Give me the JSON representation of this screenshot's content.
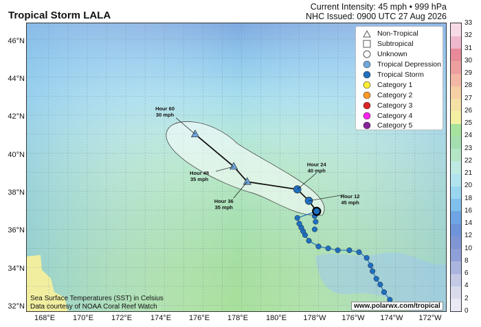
{
  "header": {
    "title": "Tropical Storm LALA",
    "intensity": "Current Intensity: 45 mph • 999 hPa",
    "issued": "NHC Issued: 0900 UTC 27 Aug 2026"
  },
  "legend": {
    "items": [
      {
        "label": "Non-Tropical",
        "symbol": "triangle",
        "color": "#ffffff"
      },
      {
        "label": "Subtropical",
        "symbol": "square",
        "color": "#ffffff"
      },
      {
        "label": "Unknown",
        "symbol": "circle",
        "color": "#ffffff"
      },
      {
        "label": "Tropical Depression",
        "symbol": "circle",
        "color": "#6fa8dc"
      },
      {
        "label": "Tropical Storm",
        "symbol": "circle",
        "color": "#1f6fbf"
      },
      {
        "label": "Category 1",
        "symbol": "circle",
        "color": "#ffee33"
      },
      {
        "label": "Category 2",
        "symbol": "circle",
        "color": "#ff9922"
      },
      {
        "label": "Category 3",
        "symbol": "circle",
        "color": "#dd2222"
      },
      {
        "label": "Category 4",
        "symbol": "circle",
        "color": "#ff22ee"
      },
      {
        "label": "Category 5",
        "symbol": "circle",
        "color": "#882299"
      }
    ]
  },
  "axes": {
    "lat_labels": [
      "46°N",
      "44°N",
      "42°N",
      "40°N",
      "38°N",
      "36°N",
      "34°N",
      "32°N"
    ],
    "lon_labels": [
      "168°E",
      "170°E",
      "172°E",
      "174°E",
      "176°E",
      "178°E",
      "180°E",
      "178°W",
      "176°W",
      "174°W",
      "172°W"
    ]
  },
  "colorbar": {
    "ticks": [
      0,
      2,
      4,
      6,
      8,
      10,
      12,
      14,
      16,
      18,
      20,
      21,
      22,
      23,
      24,
      25,
      26,
      27,
      28,
      29,
      30,
      31,
      32,
      33
    ],
    "colors": [
      "#e9eaf3",
      "#d9dbed",
      "#c4c9e6",
      "#aab4de",
      "#8f9fd7",
      "#7f95d4",
      "#6f93d8",
      "#6fa5e4",
      "#80c0ec",
      "#9ad6f0",
      "#b1e4ee",
      "#bdeae2",
      "#b4e6c6",
      "#a4deb0",
      "#a5e39e",
      "#f4f0a3",
      "#f5e0a6",
      "#f6cfa4",
      "#f2b8a5",
      "#eea0a0",
      "#e88a9a",
      "#f0b8cc",
      "#f8dae6"
    ]
  },
  "credits": {
    "sst": "Sea Surface Temperatures (SST) in Celsius",
    "source": "Data courtesy of NOAA Coral Reef Watch",
    "url": "www.polarwx.com/tropical"
  },
  "forecast_labels": [
    {
      "hour": "Hour 12",
      "wind": "45 mph"
    },
    {
      "hour": "Hour 24",
      "wind": "40 mph"
    },
    {
      "hour": "Hour 36",
      "wind": "35 mph"
    },
    {
      "hour": "Hour 48",
      "wind": "35 mph"
    },
    {
      "hour": "Hour 60",
      "wind": "30 mph"
    }
  ],
  "track": {
    "past": [
      {
        "lon": 186.4,
        "lat": 31.9,
        "type": "Tropical Storm"
      },
      {
        "lon": 186.1,
        "lat": 31.9,
        "type": "Tropical Storm"
      },
      {
        "lon": 185.7,
        "lat": 32.3,
        "type": "Tropical Storm"
      },
      {
        "lon": 185.4,
        "lat": 32.7,
        "type": "Tropical Storm"
      },
      {
        "lon": 185.2,
        "lat": 33.1,
        "type": "Tropical Storm"
      },
      {
        "lon": 185.0,
        "lat": 33.4,
        "type": "Tropical Storm"
      },
      {
        "lon": 184.8,
        "lat": 33.8,
        "type": "Tropical Storm"
      },
      {
        "lon": 184.7,
        "lat": 34.1,
        "type": "Tropical Storm"
      },
      {
        "lon": 184.5,
        "lat": 34.5,
        "type": "Tropical Storm"
      },
      {
        "lon": 184.1,
        "lat": 34.8,
        "type": "Tropical Storm"
      },
      {
        "lon": 183.6,
        "lat": 34.9,
        "type": "Tropical Storm"
      },
      {
        "lon": 183.0,
        "lat": 34.9,
        "type": "Tropical Storm"
      },
      {
        "lon": 182.5,
        "lat": 35.0,
        "type": "Tropical Storm"
      },
      {
        "lon": 182.0,
        "lat": 35.1,
        "type": "Tropical Storm"
      },
      {
        "lon": 181.5,
        "lat": 35.4,
        "type": "Tropical Storm"
      },
      {
        "lon": 181.3,
        "lat": 35.7,
        "type": "Tropical Storm"
      },
      {
        "lon": 181.2,
        "lat": 35.9,
        "type": "Tropical Storm"
      },
      {
        "lon": 181.1,
        "lat": 36.1,
        "type": "Tropical Storm"
      },
      {
        "lon": 181.0,
        "lat": 36.3,
        "type": "Tropical Storm"
      },
      {
        "lon": 180.9,
        "lat": 36.6,
        "type": "Tropical Storm"
      },
      {
        "lon": 181.8,
        "lat": 36.0,
        "type": "Tropical Storm"
      },
      {
        "lon": 181.85,
        "lat": 36.4,
        "type": "Tropical Storm"
      },
      {
        "lon": 181.8,
        "lat": 36.7,
        "type": "Tropical Storm"
      }
    ],
    "current": {
      "lon": 181.9,
      "lat": 36.95,
      "type": "Tropical Storm"
    },
    "forecast": [
      {
        "lon": 181.5,
        "lat": 37.5,
        "type": "Tropical Storm"
      },
      {
        "lon": 180.9,
        "lat": 38.1,
        "type": "Tropical Storm"
      },
      {
        "lon": 178.3,
        "lat": 38.5,
        "type": "Non-Tropical"
      },
      {
        "lon": 177.6,
        "lat": 39.3,
        "type": "Non-Tropical"
      },
      {
        "lon": 175.6,
        "lat": 41.0,
        "type": "Non-Tropical"
      }
    ]
  }
}
